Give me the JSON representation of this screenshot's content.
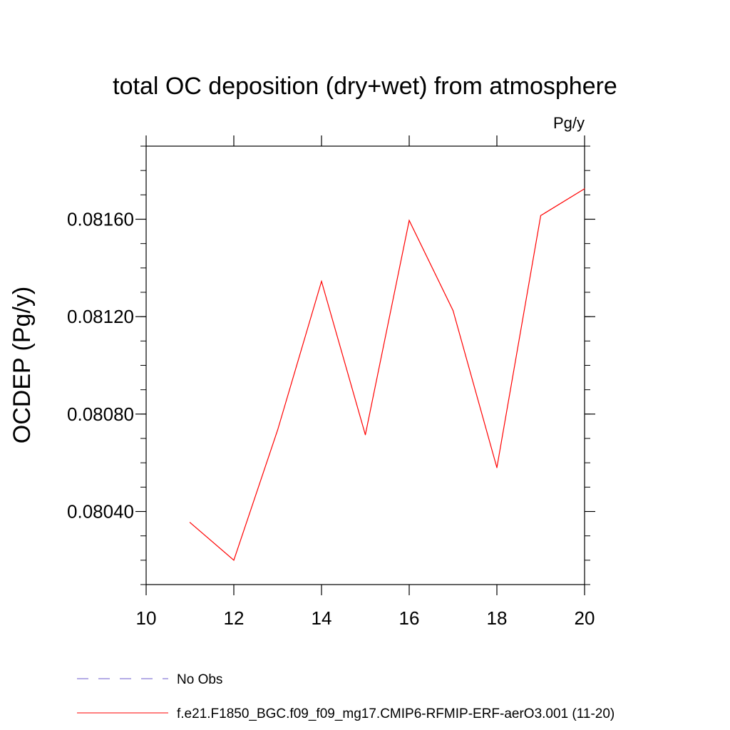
{
  "chart_data": {
    "type": "line",
    "title": "total OC deposition (dry+wet) from atmosphere",
    "units_label": "Pg/y",
    "ylabel": "OCDEP  (Pg/y)",
    "xlabel": "",
    "xlim": [
      10,
      20
    ],
    "ylim": [
      0.0801,
      0.0819
    ],
    "x_ticks": [
      10,
      12,
      14,
      16,
      18,
      20
    ],
    "x_tick_labels": [
      "10",
      "12",
      "14",
      "16",
      "18",
      "20"
    ],
    "y_ticks": [
      0.0804,
      0.0808,
      0.0812,
      0.0816
    ],
    "y_tick_labels": [
      "0.08040",
      "0.08080",
      "0.08120",
      "0.08160"
    ],
    "grid": false,
    "series": [
      {
        "name": "f.e21.F1850_BGC.f09_f09_mg17.CMIP6-RFMIP-ERF-aerO3.001 (11-20)",
        "color": "#ff0000",
        "x": [
          11,
          12,
          13,
          14,
          15,
          16,
          17,
          18,
          19,
          20
        ],
        "values": [
          0.080355,
          0.0802,
          0.080735,
          0.081345,
          0.080715,
          0.081595,
          0.081225,
          0.08058,
          0.081615,
          0.081725
        ]
      }
    ],
    "legend": [
      {
        "label": "No Obs",
        "color": "#6a5acd",
        "style": "dashed"
      },
      {
        "label": "f.e21.F1850_BGC.f09_f09_mg17.CMIP6-RFMIP-ERF-aerO3.001 (11-20)",
        "color": "#ff0000",
        "style": "solid"
      }
    ],
    "legend_placement": "bottom-left"
  }
}
